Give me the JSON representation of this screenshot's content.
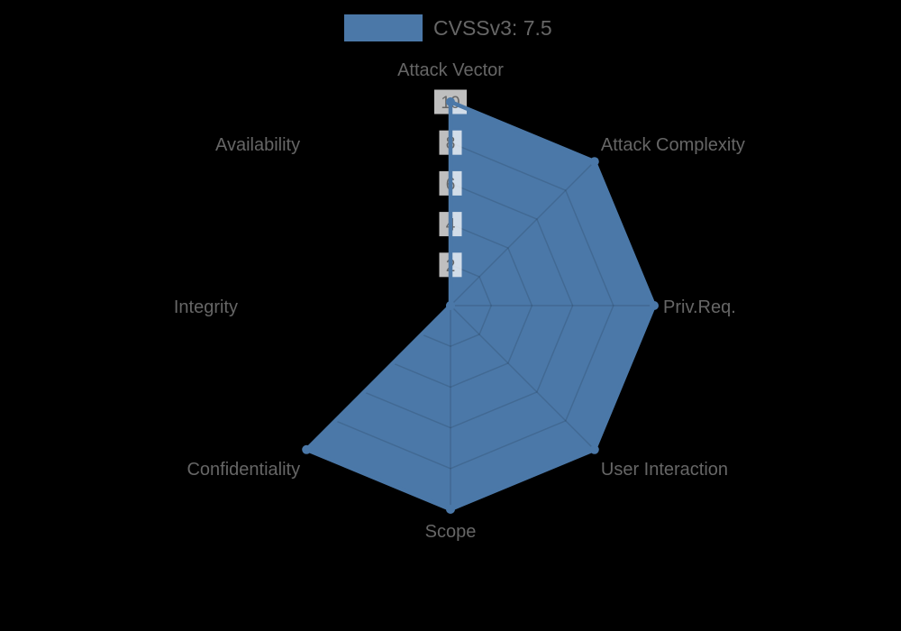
{
  "chart_data": {
    "type": "radar",
    "legend": "CVSSv3: 7.5",
    "legend_position": "top",
    "categories": [
      "Attack Vector",
      "Attack Complexity",
      "Priv.Req.",
      "User Interaction",
      "Scope",
      "Confidentiality",
      "Integrity",
      "Availability"
    ],
    "series": [
      {
        "name": "CVSSv3: 7.5",
        "values": [
          10,
          10,
          10,
          10,
          10,
          10,
          0,
          0
        ]
      }
    ],
    "ticks": [
      2,
      4,
      6,
      8,
      10
    ],
    "max": 10,
    "min": 0,
    "grid": "spider-web",
    "colors": {
      "fill": "#4b78a8",
      "stroke": "#4b78a8",
      "point": "#4b78a8",
      "grid_line": "rgba(0,0,0,0.12)",
      "tick_backdrop": "rgba(255,255,255,0.75)",
      "tick_text": "#666666",
      "axis_label_text": "#666666",
      "legend_text": "#666666",
      "background": "#000000"
    }
  }
}
